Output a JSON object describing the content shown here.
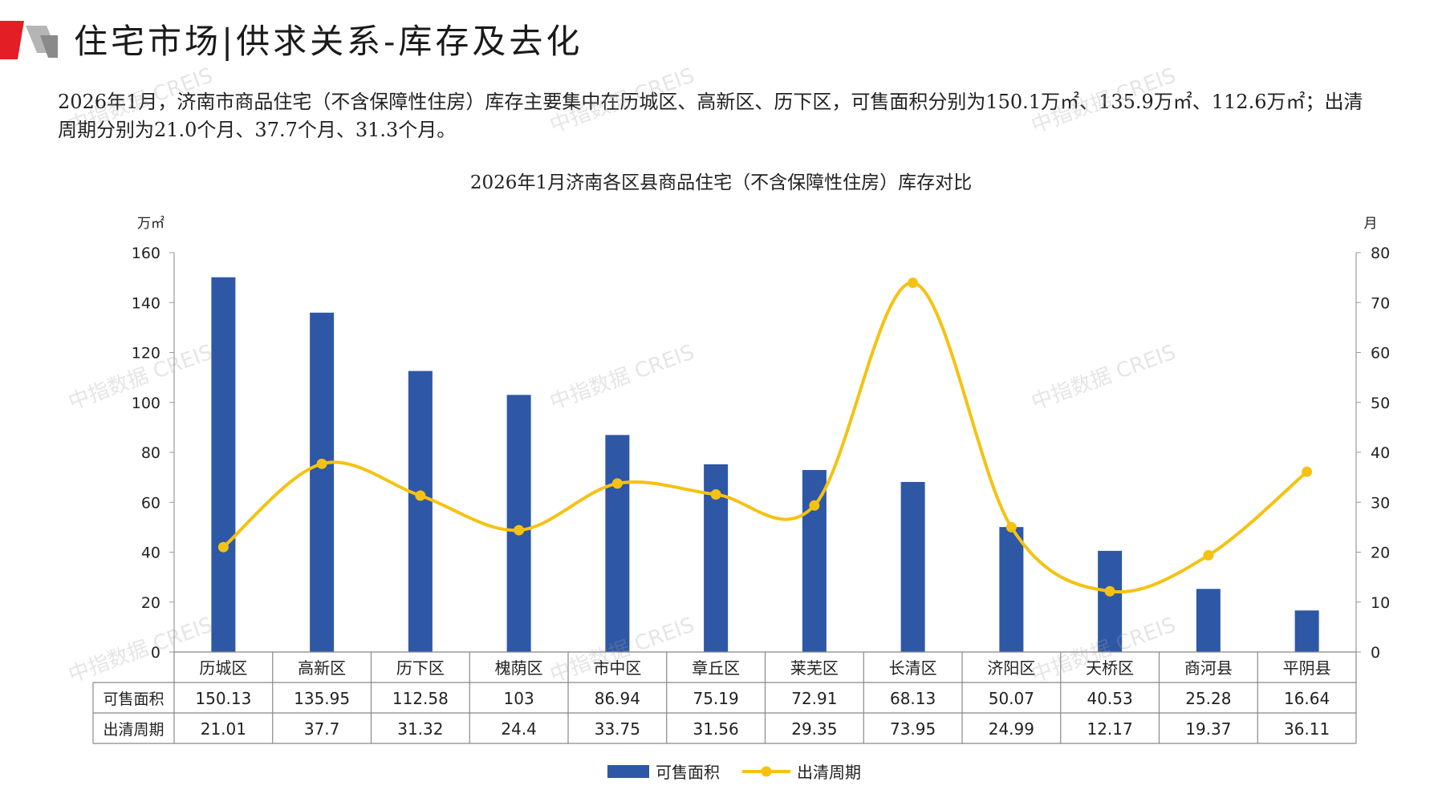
{
  "header": {
    "title": "住宅市场|供求关系-库存及去化"
  },
  "description": "2026年1月，济南市商品住宅（不含保障性住房）库存主要集中在历城区、高新区、历下区，可售面积分别为150.1万㎡、135.9万㎡、112.6万㎡；出清周期分别为21.0个月、37.7个月、31.3个月。",
  "watermark_text": "中指数据 CREIS",
  "colors": {
    "bar": "#2e57a6",
    "line": "#f5c211",
    "logo_red": "#e31e24",
    "logo_gray": "#b5b5b5"
  },
  "chart_data": {
    "type": "bar",
    "title": "2026年1月济南各区县商品住宅（不含保障性住房）库存对比",
    "y_left_unit": "万㎡",
    "y_right_unit": "月",
    "y_left_lim": [
      0,
      160
    ],
    "y_left_ticks": [
      "0",
      "20",
      "40",
      "60",
      "80",
      "100",
      "120",
      "140",
      "160"
    ],
    "y_right_lim": [
      0,
      80
    ],
    "y_right_ticks": [
      "0",
      "10",
      "20",
      "30",
      "40",
      "50",
      "60",
      "70",
      "80"
    ],
    "categories": [
      "历城区",
      "高新区",
      "历下区",
      "槐荫区",
      "市中区",
      "章丘区",
      "莱芜区",
      "长清区",
      "济阳区",
      "天桥区",
      "商河县",
      "平阴县"
    ],
    "series": [
      {
        "name": "可售面积",
        "type": "bar",
        "axis": "left",
        "values": [
          150.13,
          135.95,
          112.58,
          103,
          86.94,
          75.19,
          72.91,
          68.13,
          50.07,
          40.53,
          25.28,
          16.64
        ],
        "labels": [
          "150.13",
          "135.95",
          "112.58",
          "103",
          "86.94",
          "75.19",
          "72.91",
          "68.13",
          "50.07",
          "40.53",
          "25.28",
          "16.64"
        ]
      },
      {
        "name": "出清周期",
        "type": "line",
        "axis": "right",
        "values": [
          21.01,
          37.7,
          31.32,
          24.4,
          33.75,
          31.56,
          29.35,
          73.95,
          24.99,
          12.17,
          19.37,
          36.11
        ],
        "labels": [
          "21.01",
          "37.7",
          "31.32",
          "24.4",
          "33.75",
          "31.56",
          "29.35",
          "73.95",
          "24.99",
          "12.17",
          "19.37",
          "36.11"
        ]
      }
    ],
    "legend_position": "bottom",
    "data_table": true
  }
}
